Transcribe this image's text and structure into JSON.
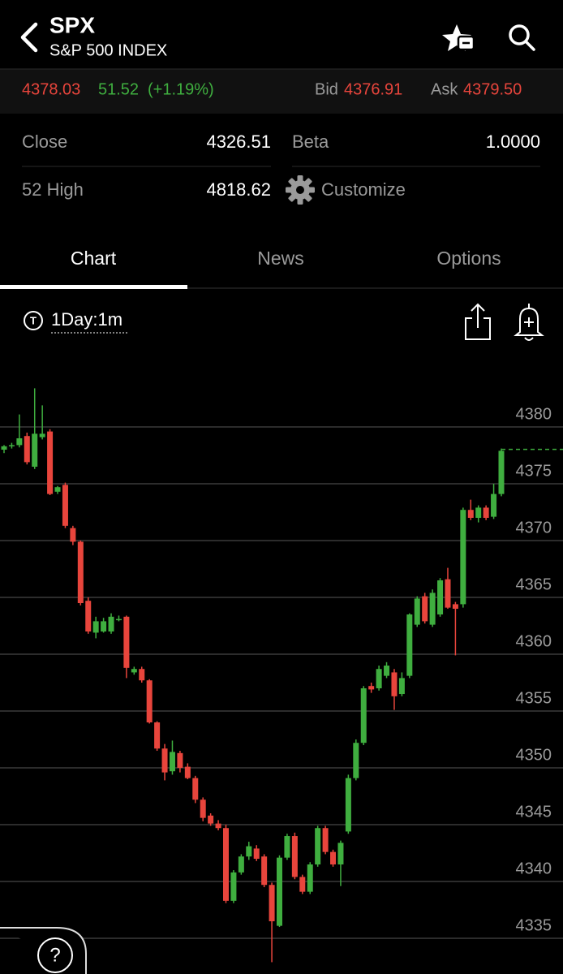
{
  "header": {
    "title": "SPX",
    "subtitle": "S&P 500 INDEX"
  },
  "quote": {
    "last": "4378.03",
    "change": "51.52",
    "change_pct": "(+1.19%)",
    "bid_label": "Bid",
    "bid": "4376.91",
    "ask_label": "Ask",
    "ask": "4379.50"
  },
  "stats": [
    {
      "label": "Close",
      "value": "4326.51"
    },
    {
      "label": "Beta",
      "value": "1.0000"
    },
    {
      "label": "52 High",
      "value": "4818.62"
    }
  ],
  "customize": "Customize",
  "tabs": [
    "Chart",
    "News",
    "Options"
  ],
  "toolbar": {
    "period": "1Day:1m"
  },
  "help": "?",
  "chart_data": {
    "type": "candlestick",
    "up_color": "#3fae3f",
    "down_color": "#e8453c",
    "grid": true,
    "ylim": [
      4331.86,
      4384
    ],
    "yticks": [
      4335,
      4340,
      4345,
      4350,
      4355,
      4360,
      4365,
      4370,
      4375,
      4380
    ],
    "open": [
      4378.0,
      4378.3,
      4378.4,
      4379.2,
      4376.5,
      4379.1,
      4379.6,
      4374.3,
      4374.9,
      4371.1,
      4369.9,
      4364.7,
      4361.9,
      4362.0,
      4362.0,
      4363.0,
      4363.3,
      4358.4,
      4358.7,
      4357.7,
      4354.0,
      4351.7,
      4349.7,
      4351.3,
      4350.1,
      4349.1,
      4347.2,
      4345.8,
      4345.1,
      4344.7,
      4338.3,
      4340.8,
      4342.2,
      4342.9,
      4342.2,
      4339.7,
      4336.1,
      4342.1,
      4344.0,
      4340.4,
      4339.1,
      4341.5,
      4344.7,
      4342.6,
      4341.5,
      4344.4,
      4349.1,
      4352.2,
      4357.2,
      4357.0,
      4358.1,
      4358.4,
      4356.5,
      4358.1,
      4362.6,
      4365.1,
      4362.6,
      4363.5,
      4366.6,
      4364.4,
      4364.4,
      4372.7,
      4372.0,
      4372.9,
      4372.1,
      4374.1
    ],
    "high": [
      4378.4,
      4378.6,
      4381.1,
      4379.5,
      4383.4,
      4381.9,
      4379.8,
      4374.8,
      4375.1,
      4371.3,
      4370.0,
      4365.0,
      4363.3,
      4363.2,
      4363.6,
      4363.4,
      4363.4,
      4358.9,
      4358.9,
      4357.8,
      4354.1,
      4352.1,
      4352.4,
      4351.5,
      4350.4,
      4349.3,
      4347.4,
      4346.0,
      4345.4,
      4345.0,
      4341.0,
      4342.4,
      4343.5,
      4343.2,
      4342.4,
      4339.9,
      4342.3,
      4344.2,
      4344.3,
      4340.6,
      4341.7,
      4344.9,
      4344.9,
      4342.8,
      4343.6,
      4349.4,
      4352.5,
      4357.2,
      4357.5,
      4359.0,
      4359.3,
      4358.7,
      4358.4,
      4363.6,
      4365.1,
      4365.4,
      4365.7,
      4366.7,
      4367.6,
      4364.6,
      4372.9,
      4373.6,
      4373.1,
      4373.1,
      4375.0,
      4378.1
    ],
    "low": [
      4377.7,
      4378.1,
      4378.2,
      4376.7,
      4376.3,
      4378.9,
      4374.0,
      4374.1,
      4371.1,
      4369.6,
      4364.3,
      4361.8,
      4361.4,
      4361.9,
      4361.8,
      4362.9,
      4357.9,
      4358.2,
      4357.5,
      4353.9,
      4351.5,
      4348.9,
      4349.4,
      4349.6,
      4349.0,
      4346.9,
      4345.3,
      4344.9,
      4344.5,
      4338.1,
      4338.1,
      4340.6,
      4341.9,
      4341.8,
      4339.5,
      4332.9,
      4336.0,
      4341.9,
      4340.2,
      4338.9,
      4338.9,
      4341.3,
      4342.4,
      4341.3,
      4339.6,
      4344.2,
      4348.9,
      4352.0,
      4356.6,
      4356.8,
      4357.9,
      4355.1,
      4356.3,
      4357.9,
      4362.4,
      4362.7,
      4362.4,
      4363.3,
      4364.0,
      4359.9,
      4364.1,
      4371.8,
      4371.6,
      4371.8,
      4371.9,
      4373.9
    ],
    "close": [
      4378.3,
      4378.4,
      4379.0,
      4376.9,
      4379.4,
      4379.4,
      4374.1,
      4374.7,
      4371.3,
      4369.9,
      4364.5,
      4362.0,
      4362.9,
      4362.9,
      4363.3,
      4363.1,
      4358.8,
      4358.7,
      4357.7,
      4354.0,
      4351.7,
      4349.6,
      4351.4,
      4350.0,
      4349.1,
      4347.2,
      4345.6,
      4345.1,
      4344.7,
      4338.3,
      4340.8,
      4342.2,
      4343.1,
      4342.0,
      4339.7,
      4336.5,
      4342.1,
      4344.0,
      4340.4,
      4339.1,
      4341.5,
      4344.7,
      4342.6,
      4341.5,
      4343.4,
      4349.1,
      4352.2,
      4357.0,
      4356.9,
      4358.7,
      4359.0,
      4356.3,
      4357.9,
      4363.5,
      4364.9,
      4362.9,
      4365.4,
      4366.5,
      4364.1,
      4364.0,
      4372.7,
      4372.0,
      4372.9,
      4372.0,
      4374.1,
      4377.9
    ]
  }
}
